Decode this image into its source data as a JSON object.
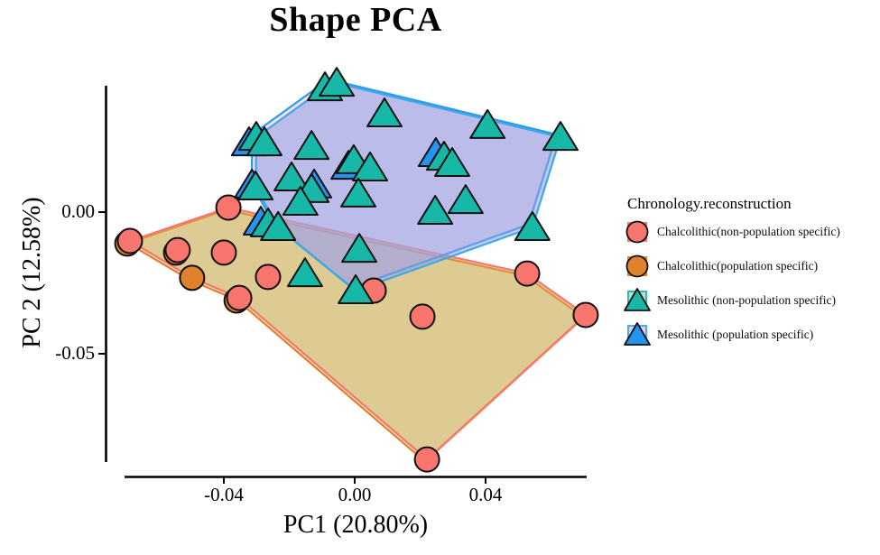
{
  "title": "Shape PCA",
  "axes": {
    "x": {
      "label": "PC1 (20.80%)",
      "ticks": [
        {
          "label": "-0.04",
          "value": -0.04
        },
        {
          "label": "0.00",
          "value": 0.0
        },
        {
          "label": "0.04",
          "value": 0.04
        }
      ],
      "range": [
        -0.0703,
        0.0709
      ]
    },
    "y": {
      "label": "PC 2 (12.58%)",
      "ticks": [
        {
          "label": "0.00",
          "value": 0.0
        },
        {
          "label": "-0.05",
          "value": -0.05
        }
      ],
      "range": [
        -0.0933,
        0.0446
      ]
    }
  },
  "legend": {
    "title": "Chronology.reconstruction",
    "items": [
      {
        "label": "Chalcolithic(non-population specific)",
        "shape": "circle",
        "symbol_color": "#f8766d",
        "key_bg": "#f7aaa1",
        "key_border": "#f8766d"
      },
      {
        "label": "Chalcolithic(population specific)",
        "shape": "circle",
        "symbol_color": "#e0812c",
        "key_bg": "#d2e3ab",
        "key_border": "#e0812c"
      },
      {
        "label": "Mesolithic (non-population specific)",
        "shape": "triangle",
        "symbol_color": "#17b8a8",
        "key_bg": "#b2e2da",
        "key_border": "#2dbdae"
      },
      {
        "label": "Mesolithic (population specific)",
        "shape": "triangle",
        "symbol_color": "#2494ef",
        "key_bg": "#f2cbe9",
        "key_border": "#45aff2"
      }
    ]
  },
  "chart_data": {
    "type": "scatter",
    "title": "Shape PCA",
    "xlabel": "PC1 (20.80%)",
    "ylabel": "PC 2 (12.58%)",
    "xlim": [
      -0.0703,
      0.0709
    ],
    "ylim": [
      -0.0933,
      0.0446
    ],
    "grid": false,
    "legend_position": "right",
    "series": [
      {
        "name": "Chalcolithic(population specific)",
        "shape": "circle",
        "color": "#e0812c",
        "hull_stroke": "#e0812c",
        "hull_fill": "rgba(190,215,140,0.45)",
        "points": [
          [
            -0.0497,
            -0.0232
          ],
          [
            -0.0695,
            -0.0111
          ],
          [
            -0.0361,
            -0.0312
          ],
          [
            -0.0546,
            -0.0143
          ]
        ],
        "hull": [
          [
            -0.0693,
            -0.011
          ],
          [
            -0.0392,
            0.0008
          ],
          [
            0.0521,
            -0.0225
          ],
          [
            0.07,
            -0.0371
          ],
          [
            0.0215,
            -0.0881
          ],
          [
            -0.0359,
            -0.0311
          ],
          [
            -0.0503,
            -0.024
          ]
        ]
      },
      {
        "name": "Chalcolithic(non-population specific)",
        "shape": "circle",
        "color": "#f8766d",
        "hull_stroke": "#f8766d",
        "hull_fill": "rgba(215,165,85,0.48)",
        "points": [
          [
            -0.0687,
            -0.0102
          ],
          [
            -0.0541,
            -0.0134
          ],
          [
            -0.04,
            -0.0143
          ],
          [
            -0.0386,
            0.0016
          ],
          [
            -0.0353,
            -0.0303
          ],
          [
            -0.0265,
            -0.0229
          ],
          [
            0.0058,
            -0.0277
          ],
          [
            0.0207,
            -0.0369
          ],
          [
            0.0527,
            -0.0217
          ],
          [
            0.0706,
            -0.0363
          ],
          [
            0.0221,
            -0.0873
          ]
        ],
        "hull": [
          [
            -0.0687,
            -0.0102
          ],
          [
            -0.0386,
            0.0016
          ],
          [
            0.0527,
            -0.0217
          ],
          [
            0.0706,
            -0.0363
          ],
          [
            0.0221,
            -0.0873
          ],
          [
            -0.0353,
            -0.0303
          ],
          [
            -0.0497,
            -0.0232
          ]
        ]
      },
      {
        "name": "Mesolithic (population specific)",
        "shape": "triangle",
        "color": "#2494ef",
        "hull_stroke": "#2b9bf0",
        "hull_fill": "rgba(235,175,225,0.38)",
        "points": [
          [
            -0.0323,
            0.0245
          ],
          [
            -0.0124,
            0.0096
          ],
          [
            -0.0019,
            0.0162
          ],
          [
            0.0248,
            0.0207
          ],
          [
            -0.0287,
            -0.0035
          ],
          [
            -0.0314,
            0.0096
          ]
        ],
        "hull": [
          [
            -0.0067,
            0.0465
          ],
          [
            0.0617,
            0.0274
          ],
          [
            0.0531,
            -0.0044
          ],
          [
            -0.0009,
            -0.0267
          ],
          [
            -0.0246,
            -0.0044
          ],
          [
            -0.0315,
            0.0099
          ],
          [
            -0.0313,
            0.0274
          ],
          [
            -0.0103,
            0.0449
          ]
        ]
      },
      {
        "name": "Mesolithic (non-population specific)",
        "shape": "triangle",
        "color": "#17b8a8",
        "hull_stroke": "#3fa8e8",
        "hull_fill": "rgba(140,158,225,0.55)",
        "points": [
          [
            -0.0091,
            0.0439
          ],
          [
            -0.0055,
            0.0455
          ],
          [
            0.0091,
            0.0347
          ],
          [
            0.0406,
            0.0306
          ],
          [
            0.0629,
            0.0264
          ],
          [
            -0.0301,
            0.0264
          ],
          [
            -0.0276,
            0.0245
          ],
          [
            -0.0132,
            0.0232
          ],
          [
            -0.0193,
            0.0121
          ],
          [
            -0.0132,
            0.008
          ],
          [
            -0.0166,
            0.0035
          ],
          [
            -0.0003,
            0.0182
          ],
          [
            0.0047,
            0.0156
          ],
          [
            0.0011,
            0.0064
          ],
          [
            0.0273,
            0.0194
          ],
          [
            0.0298,
            0.0172
          ],
          [
            -0.0303,
            0.0089
          ],
          [
            -0.0265,
            -0.0041
          ],
          [
            -0.0234,
            -0.0054
          ],
          [
            -0.0152,
            -0.0217
          ],
          [
            0.0014,
            -0.0131
          ],
          [
            0.0003,
            -0.0277
          ],
          [
            0.0246,
            0.0003
          ],
          [
            0.0339,
            0.0041
          ],
          [
            0.0543,
            -0.0054
          ]
        ],
        "hull": [
          [
            -0.0055,
            0.0455
          ],
          [
            0.0629,
            0.0264
          ],
          [
            0.0543,
            -0.0054
          ],
          [
            0.0003,
            -0.0277
          ],
          [
            -0.0234,
            -0.0054
          ],
          [
            -0.0303,
            0.0089
          ],
          [
            -0.0301,
            0.0264
          ],
          [
            -0.0091,
            0.0439
          ]
        ]
      }
    ]
  }
}
